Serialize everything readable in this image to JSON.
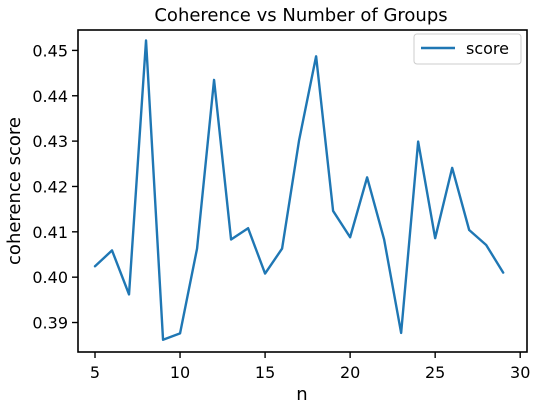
{
  "chart_data": {
    "type": "line",
    "title": "Coherence vs Number of Groups",
    "xlabel": "n",
    "ylabel": "coherence score",
    "xlim": [
      4,
      30.4
    ],
    "ylim": [
      0.3835,
      0.4545
    ],
    "xticks": [
      5,
      10,
      15,
      20,
      25,
      30
    ],
    "yticks": [
      0.39,
      0.4,
      0.41,
      0.42,
      0.43,
      0.44,
      0.45
    ],
    "ytick_labels": [
      "0.39",
      "0.40",
      "0.41",
      "0.42",
      "0.43",
      "0.44",
      "0.45"
    ],
    "grid": false,
    "legend_position": "top-right",
    "series": [
      {
        "name": "score",
        "color": "#1f77b4",
        "x": [
          5,
          6,
          7,
          8,
          9,
          10,
          11,
          12,
          13,
          14,
          15,
          16,
          17,
          18,
          19,
          20,
          21,
          22,
          23,
          24,
          25,
          26,
          27,
          28,
          29
        ],
        "y": [
          0.4024,
          0.4059,
          0.3962,
          0.4522,
          0.3862,
          0.3876,
          0.4063,
          0.4435,
          0.4083,
          0.4108,
          0.4008,
          0.4063,
          0.4302,
          0.4487,
          0.4146,
          0.4088,
          0.422,
          0.4083,
          0.3877,
          0.4299,
          0.4086,
          0.4241,
          0.4104,
          0.4071,
          0.401
        ]
      }
    ]
  }
}
